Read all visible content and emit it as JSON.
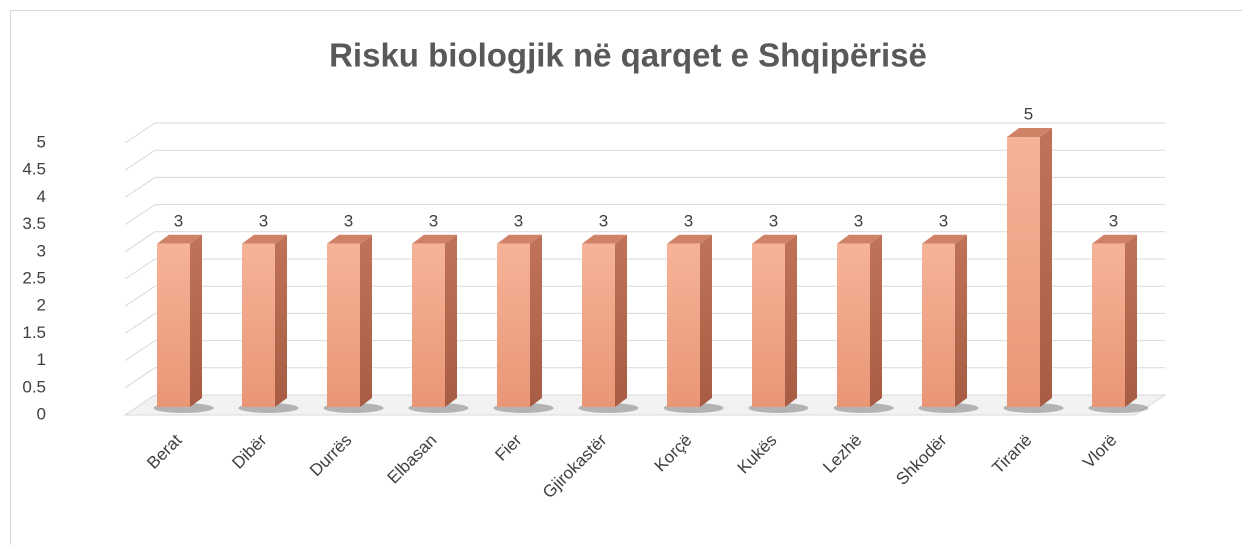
{
  "chart_data": {
    "type": "bar",
    "title": "Risku biologjik në qarqet e Shqipërisë",
    "categories": [
      "Berat",
      "Dibër",
      "Durrës",
      "Elbasan",
      "Fier",
      "Gjirokastër",
      "Korçë",
      "Kukës",
      "Lezhë",
      "Shkodër",
      "Tiranë",
      "Vlorë"
    ],
    "values": [
      3,
      3,
      3,
      3,
      3,
      3,
      3,
      3,
      3,
      3,
      5,
      3
    ],
    "color": "#f4a98a",
    "ylim": [
      0,
      5
    ],
    "yticks": [
      0,
      0.5,
      1,
      1.5,
      2,
      2.5,
      3,
      3.5,
      4,
      4.5,
      5
    ],
    "grid": true
  }
}
